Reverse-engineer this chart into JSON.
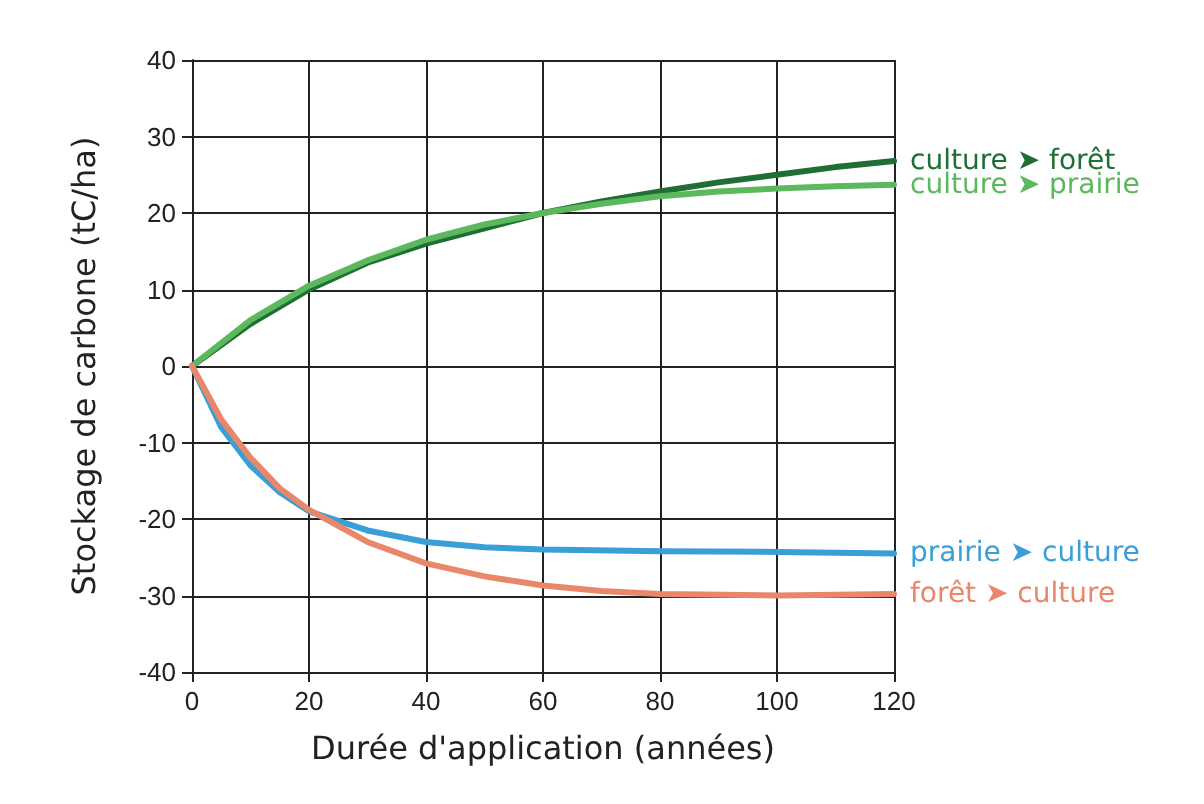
{
  "chart_data": {
    "type": "line",
    "xlabel": "Durée d'application (années)",
    "ylabel": "Stockage de carbone (tC/ha)",
    "xlim": [
      0,
      120
    ],
    "xticks": [
      0,
      20,
      40,
      60,
      80,
      100,
      120
    ],
    "ylim": [
      -40,
      40
    ],
    "yticks": [
      -40,
      -30,
      -20,
      -10,
      0,
      10,
      20,
      30,
      40
    ],
    "grid": true,
    "legend": false,
    "marker": "none",
    "line_style": "solid",
    "series": [
      {
        "name": "culture ➤ forêt",
        "color": "#1f6e35",
        "x": [
          0,
          10,
          20,
          30,
          40,
          50,
          60,
          70,
          80,
          90,
          100,
          110,
          120
        ],
        "values": [
          0,
          5.5,
          10,
          13.5,
          16,
          18,
          20,
          21.5,
          22.8,
          24,
          25,
          26,
          26.8
        ]
      },
      {
        "name": "culture ➤ prairie",
        "color": "#5cb85c",
        "x": [
          0,
          10,
          20,
          30,
          40,
          50,
          60,
          70,
          80,
          90,
          100,
          110,
          120
        ],
        "values": [
          0,
          6,
          10.5,
          13.8,
          16.5,
          18.5,
          20,
          21.2,
          22.2,
          22.8,
          23.2,
          23.5,
          23.7
        ]
      },
      {
        "name": "prairie ➤ culture",
        "color": "#3a9fd6",
        "x": [
          0,
          5,
          10,
          15,
          20,
          30,
          40,
          50,
          60,
          80,
          100,
          120
        ],
        "values": [
          0,
          -8,
          -13,
          -16.5,
          -19,
          -21.5,
          -23,
          -23.7,
          -24,
          -24.2,
          -24.3,
          -24.5
        ]
      },
      {
        "name": "forêt ➤ culture",
        "color": "#e8876a",
        "x": [
          0,
          5,
          10,
          15,
          20,
          30,
          40,
          50,
          60,
          70,
          80,
          100,
          120
        ],
        "values": [
          0,
          -7,
          -12,
          -16,
          -18.8,
          -23,
          -25.8,
          -27.5,
          -28.7,
          -29.4,
          -29.8,
          -30,
          -29.8
        ]
      }
    ]
  }
}
